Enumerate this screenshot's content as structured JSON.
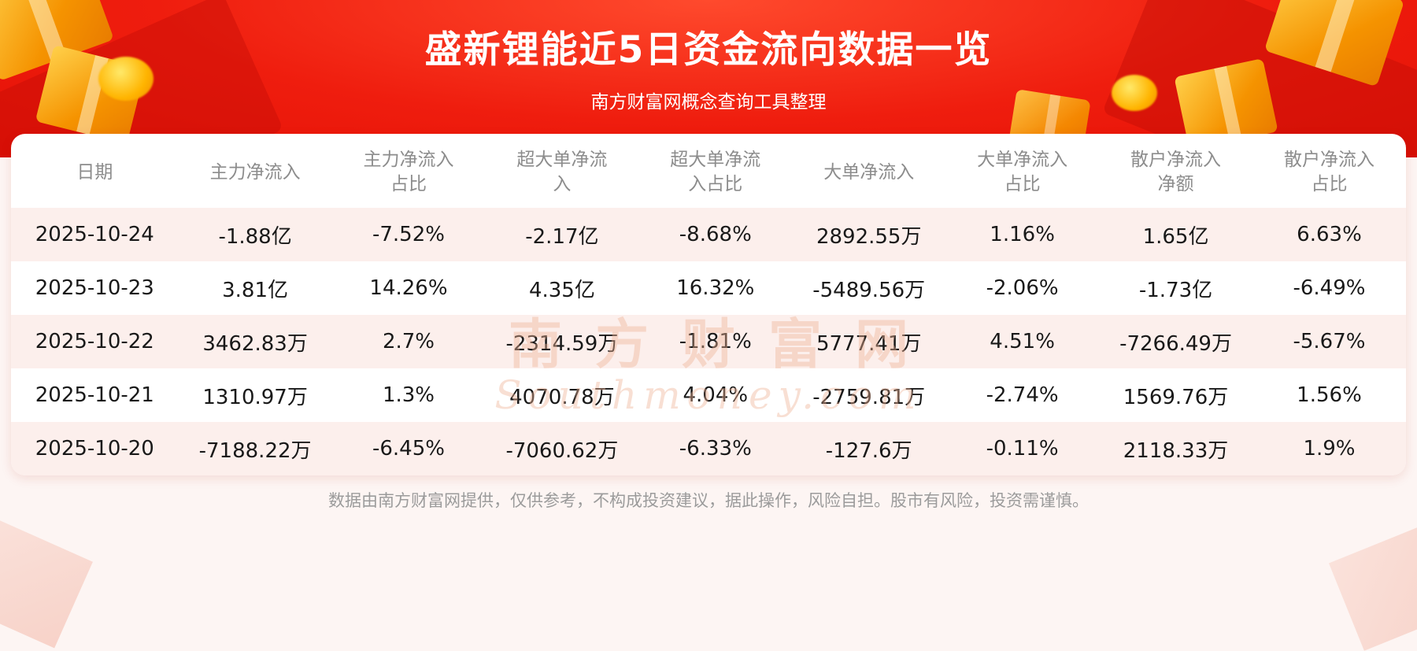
{
  "header": {
    "title": "盛新锂能近5日资金流向数据一览",
    "subtitle": "南方财富网概念查询工具整理"
  },
  "table": {
    "display_columns": [
      "日期",
      "主力净流入",
      "主力净流入\n占比",
      "超大单净流\n入",
      "超大单净流\n入占比",
      "大单净流入",
      "大单净流入\n占比",
      "散户净流入\n净额",
      "散户净流入\n占比"
    ]
  },
  "chart_data": {
    "type": "table",
    "title": "盛新锂能近5日资金流向数据一览",
    "columns": [
      "日期",
      "主力净流入",
      "主力净流入占比",
      "超大单净流入",
      "超大单净流入占比",
      "大单净流入",
      "大单净流入占比",
      "散户净流入净额",
      "散户净流入占比"
    ],
    "rows": [
      [
        "2025-10-24",
        "-1.88亿",
        "-7.52%",
        "-2.17亿",
        "-8.68%",
        "2892.55万",
        "1.16%",
        "1.65亿",
        "6.63%"
      ],
      [
        "2025-10-23",
        "3.81亿",
        "14.26%",
        "4.35亿",
        "16.32%",
        "-5489.56万",
        "-2.06%",
        "-1.73亿",
        "-6.49%"
      ],
      [
        "2025-10-22",
        "3462.83万",
        "2.7%",
        "-2314.59万",
        "-1.81%",
        "5777.41万",
        "4.51%",
        "-7266.49万",
        "-5.67%"
      ],
      [
        "2025-10-21",
        "1310.97万",
        "1.3%",
        "4070.78万",
        "4.04%",
        "-2759.81万",
        "-2.74%",
        "1569.76万",
        "1.56%"
      ],
      [
        "2025-10-20",
        "-7188.22万",
        "-6.45%",
        "-7060.62万",
        "-6.33%",
        "-127.6万",
        "-0.11%",
        "2118.33万",
        "1.9%"
      ]
    ]
  },
  "watermark": {
    "cn": "南方财富网",
    "en": "Southmoney.com"
  },
  "footer": {
    "disclaimer": "数据由南方财富网提供，仅供参考，不构成投资建议，据此操作，风险自担。股市有风险，投资需谨慎。"
  },
  "colors": {
    "banner_red": "#ee1c0e",
    "row_stripe_pink": "#fcefec",
    "gold_decoration": "#f59300",
    "data_text": "#191919",
    "header_text": "#8c8c8c",
    "footer_text": "#9b9b9b"
  }
}
